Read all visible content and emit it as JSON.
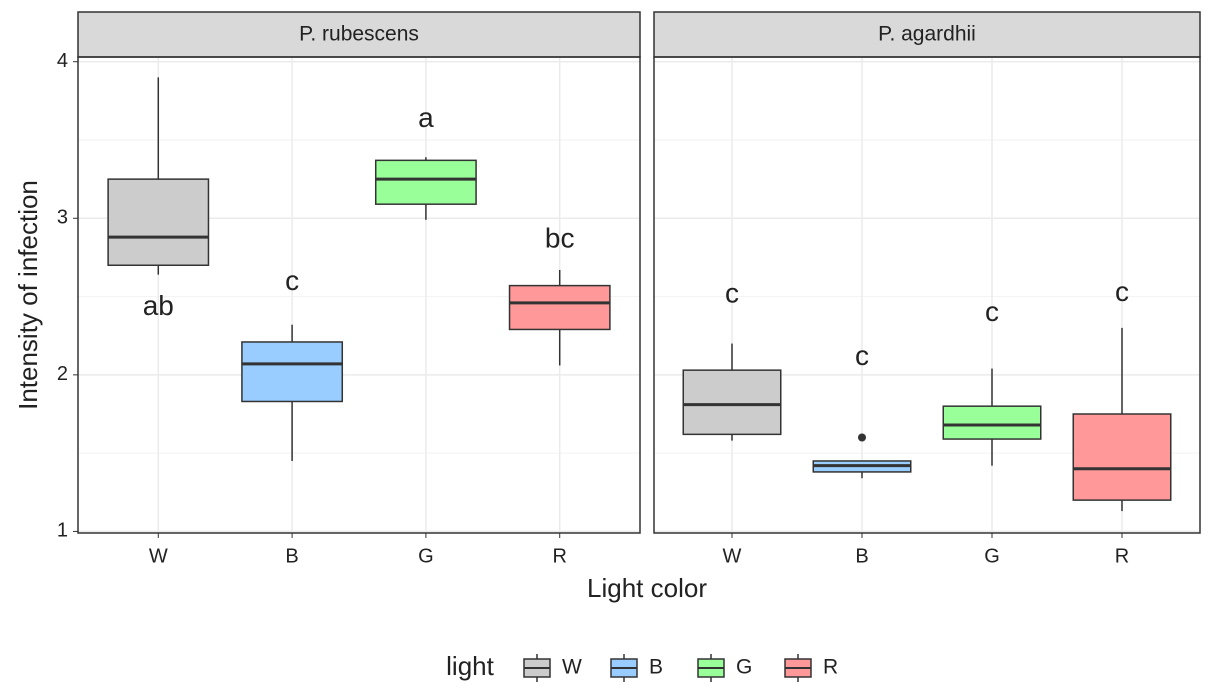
{
  "chart_data": {
    "type": "box",
    "x_label": "Light color",
    "y_label": "Intensity of infection",
    "legend_title": "light",
    "categories": [
      "W",
      "B",
      "G",
      "R"
    ],
    "colors": [
      "#cccccc",
      "#99ccff",
      "#99ff99",
      "#ff9999"
    ],
    "ylim": [
      0.99,
      4.03
    ],
    "yticks": [
      1,
      2,
      3,
      4
    ],
    "grid": true,
    "panels": [
      {
        "title": "P. rubescens",
        "boxes": [
          {
            "min": 2.64,
            "q1": 2.7,
            "median": 2.88,
            "q3": 3.25,
            "max": 3.9,
            "outliers": [],
            "label": "ab",
            "label_y": 2.43
          },
          {
            "min": 1.45,
            "q1": 1.83,
            "median": 2.07,
            "q3": 2.21,
            "max": 2.32,
            "outliers": [],
            "label": "c",
            "label_y": 2.59
          },
          {
            "min": 2.99,
            "q1": 3.09,
            "median": 3.25,
            "q3": 3.37,
            "max": 3.39,
            "outliers": [],
            "label": "a",
            "label_y": 3.63
          },
          {
            "min": 2.06,
            "q1": 2.29,
            "median": 2.46,
            "q3": 2.57,
            "max": 2.67,
            "outliers": [],
            "label": "bc",
            "label_y": 2.86
          }
        ]
      },
      {
        "title": "P. agardhii",
        "boxes": [
          {
            "min": 1.58,
            "q1": 1.62,
            "median": 1.81,
            "q3": 2.03,
            "max": 2.2,
            "outliers": [],
            "label": "c",
            "label_y": 2.51
          },
          {
            "min": 1.34,
            "q1": 1.38,
            "median": 1.42,
            "q3": 1.45,
            "max": 1.45,
            "outliers": [
              1.6
            ],
            "label": "c",
            "label_y": 2.11
          },
          {
            "min": 1.42,
            "q1": 1.59,
            "median": 1.68,
            "q3": 1.8,
            "max": 2.04,
            "outliers": [],
            "label": "c",
            "label_y": 2.39
          },
          {
            "min": 1.13,
            "q1": 1.2,
            "median": 1.4,
            "q3": 1.75,
            "max": 2.3,
            "outliers": [],
            "label": "c",
            "label_y": 2.52
          }
        ]
      }
    ]
  }
}
